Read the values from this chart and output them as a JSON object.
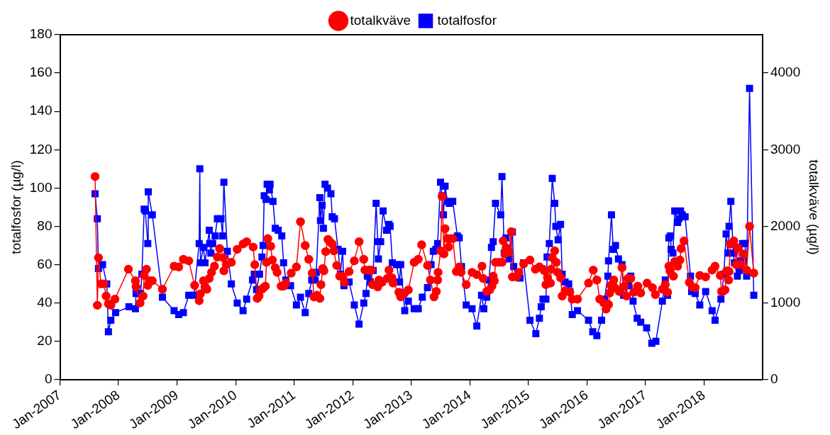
{
  "chart_data": {
    "type": "line",
    "ylabel": "totalfosfor (µg/l)",
    "y2label": "totalkväve (µg/l)",
    "xlim": [
      "2007-01",
      "2019-01"
    ],
    "xticks": [
      {
        "value": "2007-01",
        "label": "Jan-2007"
      },
      {
        "value": "2008-01",
        "label": "Jan-2008"
      },
      {
        "value": "2009-01",
        "label": "Jan-2009"
      },
      {
        "value": "2010-01",
        "label": "Jan-2010"
      },
      {
        "value": "2011-01",
        "label": "Jan-2011"
      },
      {
        "value": "2012-01",
        "label": "Jan-2012"
      },
      {
        "value": "2013-01",
        "label": "Jan-2013"
      },
      {
        "value": "2014-01",
        "label": "Jan-2014"
      },
      {
        "value": "2015-01",
        "label": "Jan-2015"
      },
      {
        "value": "2016-01",
        "label": "Jan-2016"
      },
      {
        "value": "2017-01",
        "label": "Jan-2017"
      },
      {
        "value": "2018-01",
        "label": "Jan-2018"
      }
    ],
    "ylim": [
      0,
      180
    ],
    "yticks": [
      0,
      20,
      40,
      60,
      80,
      100,
      120,
      140,
      160,
      180
    ],
    "y2lim": [
      0,
      4500
    ],
    "y2ticks": [
      0,
      1000,
      2000,
      3000,
      4000
    ],
    "legend": "top",
    "line_style": "solid",
    "series": [
      {
        "name": "totalfosfor",
        "color": "#0000ff",
        "marker": "square",
        "axis": "y",
        "x": [
          "2007-08-07",
          "2007-08-21",
          "2007-08-28",
          "2007-09-23",
          "2007-10-19",
          "2007-10-29",
          "2007-11-14",
          "2007-12-13",
          "2008-03-05",
          "2008-04-15",
          "2008-04-19",
          "2008-05-17",
          "2008-05-25",
          "2008-06-09",
          "2008-06-16",
          "2008-07-01",
          "2008-07-04",
          "2008-07-29",
          "2008-10-01",
          "2008-12-13",
          "2009-01-11",
          "2009-02-10",
          "2009-03-13",
          "2009-04-15",
          "2009-05-17",
          "2009-05-21",
          "2009-05-25",
          "2009-06-13",
          "2009-06-23",
          "2009-07-19",
          "2009-07-22",
          "2009-07-29",
          "2009-08-10",
          "2009-08-25",
          "2009-09-09",
          "2009-10-01",
          "2009-10-11",
          "2009-10-19",
          "2009-11-10",
          "2009-12-05",
          "2010-01-11",
          "2010-02-17",
          "2010-03-09",
          "2010-04-15",
          "2010-04-26",
          "2010-05-10",
          "2010-05-28",
          "2010-06-13",
          "2010-06-20",
          "2010-06-27",
          "2010-07-08",
          "2010-07-15",
          "2010-07-29",
          "2010-08-03",
          "2010-08-21",
          "2010-09-05",
          "2010-09-23",
          "2010-10-15",
          "2010-10-26",
          "2010-11-10",
          "2010-12-09",
          "2011-01-15",
          "2011-02-10",
          "2011-03-09",
          "2011-04-01",
          "2011-04-19",
          "2011-05-10",
          "2011-05-17",
          "2011-06-09",
          "2011-06-13",
          "2011-06-23",
          "2011-07-01",
          "2011-07-11",
          "2011-07-26",
          "2011-08-17",
          "2011-08-25",
          "2011-09-09",
          "2011-10-01",
          "2011-10-15",
          "2011-10-29",
          "2011-11-07",
          "2011-12-09",
          "2012-01-11",
          "2012-02-10",
          "2012-03-09",
          "2012-03-23",
          "2012-04-01",
          "2012-04-19",
          "2012-05-07",
          "2012-05-25",
          "2012-06-05",
          "2012-06-09",
          "2012-06-23",
          "2012-07-08",
          "2012-07-29",
          "2012-08-14",
          "2012-08-21",
          "2012-09-05",
          "2012-10-01",
          "2012-10-19",
          "2012-10-26",
          "2012-11-21",
          "2012-12-13",
          "2013-01-19",
          "2013-02-14",
          "2013-03-09",
          "2013-04-11",
          "2013-05-03",
          "2013-05-17",
          "2013-06-02",
          "2013-06-13",
          "2013-07-01",
          "2013-07-11",
          "2013-07-19",
          "2013-07-29",
          "2013-08-14",
          "2013-08-25",
          "2013-09-16",
          "2013-10-15",
          "2013-10-26",
          "2013-11-10",
          "2013-12-09",
          "2014-01-15",
          "2014-02-14",
          "2014-03-13",
          "2014-03-27",
          "2014-04-15",
          "2014-04-29",
          "2014-05-14",
          "2014-05-25",
          "2014-06-09",
          "2014-07-11",
          "2014-07-19",
          "2014-08-03",
          "2014-08-14",
          "2014-09-02",
          "2014-09-23",
          "2014-10-01",
          "2014-10-26",
          "2014-11-10",
          "2014-12-02",
          "2015-01-11",
          "2015-02-17",
          "2015-03-09",
          "2015-03-20",
          "2015-04-01",
          "2015-04-19",
          "2015-04-26",
          "2015-05-10",
          "2015-05-28",
          "2015-06-13",
          "2015-06-20",
          "2015-07-04",
          "2015-07-19",
          "2015-07-29",
          "2015-08-17",
          "2015-09-09",
          "2015-09-16",
          "2015-10-01",
          "2015-11-03",
          "2016-01-11",
          "2016-02-07",
          "2016-03-02",
          "2016-04-01",
          "2016-04-19",
          "2016-05-10",
          "2016-05-14",
          "2016-06-02",
          "2016-06-13",
          "2016-06-27",
          "2016-07-15",
          "2016-08-07",
          "2016-08-17",
          "2016-09-13",
          "2016-10-01",
          "2016-10-15",
          "2016-11-10",
          "2016-12-02",
          "2017-01-08",
          "2017-02-10",
          "2017-03-05",
          "2017-04-15",
          "2017-05-03",
          "2017-05-17",
          "2017-05-25",
          "2017-06-05",
          "2017-06-09",
          "2017-06-20",
          "2017-07-01",
          "2017-07-19",
          "2017-07-26",
          "2017-08-07",
          "2017-08-17",
          "2017-09-05",
          "2017-10-08",
          "2017-10-15",
          "2017-11-07",
          "2017-12-05",
          "2018-01-11",
          "2018-02-21",
          "2018-03-09",
          "2018-04-15",
          "2018-04-22",
          "2018-05-03",
          "2018-05-17",
          "2018-05-28",
          "2018-06-05",
          "2018-06-16",
          "2018-07-01",
          "2018-07-08",
          "2018-07-26",
          "2018-08-07",
          "2018-08-17",
          "2018-08-28",
          "2018-09-13",
          "2018-09-23",
          "2018-10-11",
          "2018-11-07"
        ],
        "values": [
          97,
          84,
          58,
          60,
          50,
          25,
          31,
          35,
          38,
          37,
          45,
          45,
          55,
          89,
          88,
          71,
          98,
          86,
          43,
          36,
          34,
          35,
          44,
          44,
          71,
          110,
          61,
          69,
          61,
          78,
          71,
          66,
          71,
          75,
          84,
          84,
          75,
          103,
          67,
          50,
          40,
          36,
          42,
          52,
          55,
          47,
          55,
          64,
          70,
          96,
          94,
          102,
          99,
          102,
          93,
          79,
          78,
          75,
          61,
          52,
          49,
          39,
          43,
          35,
          45,
          52,
          52,
          56,
          95,
          83,
          91,
          79,
          102,
          100,
          97,
          85,
          84,
          68,
          55,
          67,
          49,
          51,
          39,
          29,
          40,
          45,
          54,
          51,
          57,
          92,
          72,
          63,
          72,
          88,
          78,
          81,
          80,
          61,
          60,
          51,
          60,
          36,
          41,
          37,
          37,
          43,
          48,
          60,
          67,
          68,
          71,
          103,
          96,
          86,
          101,
          93,
          92,
          93,
          75,
          74,
          59,
          39,
          37,
          28,
          44,
          37,
          43,
          52,
          69,
          72,
          92,
          86,
          106,
          66,
          74,
          63,
          77,
          59,
          56,
          53,
          61,
          31,
          24,
          32,
          38,
          42,
          42,
          64,
          71,
          105,
          92,
          80,
          73,
          81,
          55,
          51,
          50,
          46,
          34,
          36,
          31,
          25,
          23,
          31,
          42,
          54,
          62,
          86,
          68,
          70,
          63,
          60,
          44,
          49,
          54,
          41,
          32,
          30,
          27,
          19,
          20,
          41,
          52,
          44,
          74,
          75,
          68,
          66,
          88,
          82,
          84,
          88,
          86,
          85,
          54,
          46,
          45,
          39,
          46,
          36,
          31,
          42,
          46,
          55,
          76,
          66,
          80,
          93,
          66,
          61,
          54,
          57,
          62,
          71,
          71,
          54,
          152,
          44
        ]
      },
      {
        "name": "totalkväve",
        "color": "#ff0000",
        "marker": "circle",
        "axis": "y2",
        "x": [
          "2007-08-07",
          "2007-08-21",
          "2007-08-28",
          "2007-09-13",
          "2007-10-01",
          "2007-10-15",
          "2007-10-29",
          "2007-11-14",
          "2007-12-09",
          "2008-03-02",
          "2008-04-15",
          "2008-04-19",
          "2008-05-14",
          "2008-06-02",
          "2008-06-09",
          "2008-06-23",
          "2008-07-01",
          "2008-07-11",
          "2008-07-29",
          "2008-10-01",
          "2008-12-13",
          "2009-01-11",
          "2009-02-10",
          "2009-03-13",
          "2009-04-19",
          "2009-05-17",
          "2009-05-25",
          "2009-06-13",
          "2009-06-23",
          "2009-07-04",
          "2009-07-19",
          "2009-08-03",
          "2009-08-21",
          "2009-09-09",
          "2009-09-23",
          "2009-10-15",
          "2009-10-19",
          "2009-11-03",
          "2009-12-05",
          "2010-01-11",
          "2010-02-17",
          "2010-03-09",
          "2010-04-19",
          "2010-04-29",
          "2010-05-14",
          "2010-05-25",
          "2010-06-13",
          "2010-06-23",
          "2010-07-04",
          "2010-07-11",
          "2010-07-19",
          "2010-08-07",
          "2010-08-17",
          "2010-09-05",
          "2010-09-16",
          "2010-10-11",
          "2010-10-26",
          "2010-11-10",
          "2010-12-13",
          "2011-01-15",
          "2011-02-10",
          "2011-03-09",
          "2011-04-01",
          "2011-04-22",
          "2011-05-03",
          "2011-05-21",
          "2011-06-09",
          "2011-06-16",
          "2011-06-27",
          "2011-07-04",
          "2011-07-15",
          "2011-07-29",
          "2011-08-10",
          "2011-08-25",
          "2011-09-05",
          "2011-09-23",
          "2011-10-11",
          "2011-10-26",
          "2011-11-10",
          "2011-12-09",
          "2012-01-11",
          "2012-02-10",
          "2012-03-09",
          "2012-03-16",
          "2012-04-08",
          "2012-04-26",
          "2012-05-03",
          "2012-06-05",
          "2012-06-13",
          "2012-07-01",
          "2012-08-03",
          "2012-08-14",
          "2012-09-02",
          "2012-09-09",
          "2012-10-15",
          "2012-10-26",
          "2012-11-17",
          "2012-12-13",
          "2013-01-19",
          "2013-02-14",
          "2013-03-05",
          "2013-04-11",
          "2013-04-29",
          "2013-05-21",
          "2013-06-05",
          "2013-06-13",
          "2013-06-16",
          "2013-07-01",
          "2013-07-11",
          "2013-07-22",
          "2013-07-29",
          "2013-08-14",
          "2013-08-21",
          "2013-09-02",
          "2013-09-16",
          "2013-10-08",
          "2013-10-26",
          "2013-11-07",
          "2013-12-09",
          "2014-01-15",
          "2014-02-14",
          "2014-03-16",
          "2014-03-23",
          "2014-04-15",
          "2014-05-03",
          "2014-05-17",
          "2014-05-25",
          "2014-06-02",
          "2014-06-09",
          "2014-07-01",
          "2014-07-19",
          "2014-07-26",
          "2014-08-07",
          "2014-08-14",
          "2014-09-02",
          "2014-09-16",
          "2014-09-23",
          "2014-10-19",
          "2014-11-03",
          "2014-12-02",
          "2015-01-11",
          "2015-02-14",
          "2015-03-09",
          "2015-04-01",
          "2015-04-11",
          "2015-04-19",
          "2015-04-29",
          "2015-05-17",
          "2015-05-21",
          "2015-05-28",
          "2015-06-13",
          "2015-06-23",
          "2015-07-01",
          "2015-07-19",
          "2015-07-29",
          "2015-08-17",
          "2015-09-16",
          "2015-10-01",
          "2015-11-03",
          "2016-01-11",
          "2016-02-10",
          "2016-03-02",
          "2016-03-20",
          "2016-04-15",
          "2016-04-29",
          "2016-05-14",
          "2016-05-21",
          "2016-05-28",
          "2016-06-16",
          "2016-06-23",
          "2016-07-19",
          "2016-08-07",
          "2016-08-21",
          "2016-09-05",
          "2016-09-13",
          "2016-10-01",
          "2016-10-19",
          "2016-11-14",
          "2016-12-02",
          "2017-01-11",
          "2017-02-14",
          "2017-03-02",
          "2017-04-15",
          "2017-05-03",
          "2017-05-17",
          "2017-05-25",
          "2017-06-02",
          "2017-06-23",
          "2017-07-01",
          "2017-07-19",
          "2017-08-03",
          "2017-08-10",
          "2017-08-28",
          "2017-10-01",
          "2017-10-19",
          "2017-11-07",
          "2017-12-05",
          "2018-01-11",
          "2018-02-21",
          "2018-03-09",
          "2018-04-11",
          "2018-04-19",
          "2018-05-10",
          "2018-05-21",
          "2018-06-02",
          "2018-06-05",
          "2018-06-13",
          "2018-07-04",
          "2018-07-19",
          "2018-07-29",
          "2018-08-17",
          "2018-09-05",
          "2018-09-23",
          "2018-10-11",
          "2018-11-07"
        ],
        "values": [
          2650,
          970,
          1590,
          1250,
          1250,
          1090,
          990,
          970,
          1050,
          1440,
          1290,
          1210,
          1000,
          1090,
          1360,
          1440,
          1230,
          1290,
          1290,
          1180,
          1480,
          1470,
          1570,
          1550,
          1230,
          1030,
          1120,
          1290,
          1210,
          1180,
          1320,
          1400,
          1480,
          1600,
          1710,
          1590,
          1420,
          1500,
          1530,
          1700,
          1770,
          1800,
          1730,
          1500,
          1060,
          1090,
          1180,
          1200,
          1220,
          1530,
          1840,
          1740,
          1560,
          1460,
          1400,
          1220,
          1220,
          1260,
          1390,
          1470,
          2060,
          1750,
          1570,
          1390,
          1080,
          1100,
          1060,
          1240,
          1450,
          1420,
          1670,
          1830,
          1800,
          1770,
          1680,
          1490,
          1350,
          1350,
          1270,
          1410,
          1550,
          1800,
          1570,
          1430,
          1430,
          1430,
          1240,
          1210,
          1300,
          1270,
          1320,
          1430,
          1330,
          1260,
          1140,
          1080,
          1120,
          1170,
          1530,
          1570,
          1760,
          1490,
          1300,
          1080,
          1150,
          1300,
          1400,
          1680,
          2390,
          1640,
          1970,
          1840,
          1730,
          1840,
          1840,
          1410,
          1470,
          1400,
          1240,
          1400,
          1370,
          1480,
          1320,
          1150,
          1170,
          1220,
          1350,
          1290,
          1530,
          1530,
          1530,
          1810,
          1640,
          1720,
          1670,
          1930,
          1340,
          1340,
          1400,
          1510,
          1560,
          1440,
          1470,
          1440,
          1420,
          1240,
          1330,
          1260,
          1440,
          1590,
          1680,
          1530,
          1400,
          1330,
          1090,
          1160,
          1140,
          1050,
          1050,
          1260,
          1430,
          1300,
          1050,
          1000,
          920,
          980,
          1130,
          1230,
          1300,
          1200,
          1150,
          1460,
          1220,
          1090,
          1320,
          1320,
          1140,
          1220,
          1130,
          1260,
          1200,
          1110,
          1180,
          1240,
          1140,
          1480,
          1420,
          1350,
          1540,
          1480,
          1560,
          1710,
          1810,
          1270,
          1210,
          1200,
          1360,
          1340,
          1430,
          1480,
          1360,
          1150,
          1170,
          1420,
          1300,
          1410,
          1770,
          1810,
          1500,
          1720,
          1500,
          1640,
          1430,
          2000,
          1390
        ]
      }
    ]
  }
}
